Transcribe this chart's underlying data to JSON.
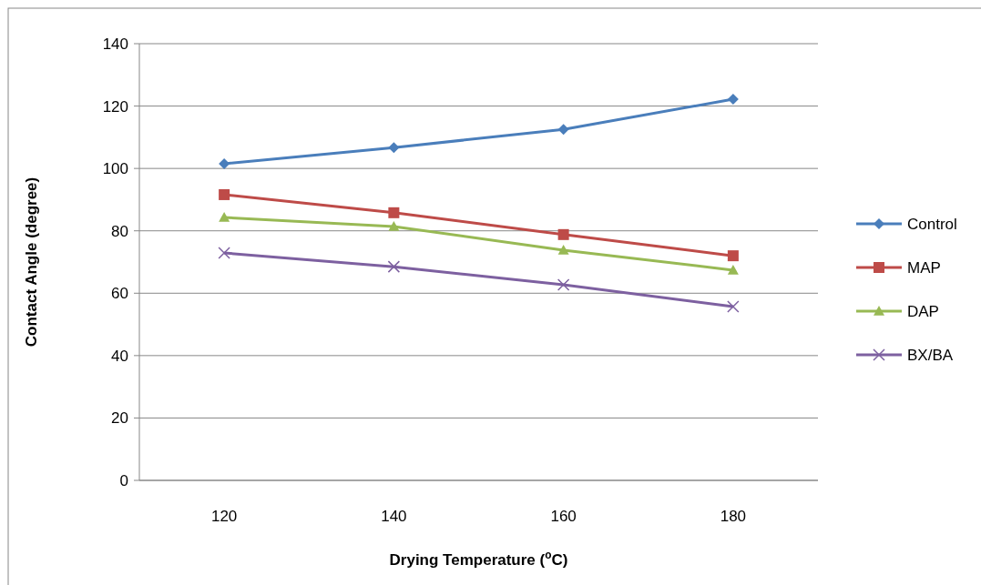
{
  "chart_data": {
    "type": "line",
    "xlabel": "Drying Temperature ($^{o}$C)",
    "ylabel": "Contact Angle (degree)",
    "categories": [
      "120",
      "140",
      "160",
      "180"
    ],
    "series": [
      {
        "name": "Control",
        "color": "#4a7ebb",
        "marker": "diamond",
        "values": [
          101.5,
          106.7,
          112.5,
          122.2
        ]
      },
      {
        "name": "MAP",
        "color": "#be4b48",
        "marker": "square",
        "values": [
          91.6,
          85.8,
          78.8,
          72
        ]
      },
      {
        "name": "DAP",
        "color": "#98b954",
        "marker": "triangle",
        "values": [
          84.3,
          81.4,
          73.8,
          67.4
        ]
      },
      {
        "name": "BX/BA",
        "color": "#7d60a0",
        "marker": "cross",
        "values": [
          72.9,
          68.5,
          62.7,
          55.7
        ]
      }
    ],
    "ylim": [
      0,
      140
    ],
    "yticks": [
      0,
      20,
      40,
      60,
      80,
      100,
      120,
      140
    ],
    "grid": "y",
    "legend": "right"
  }
}
